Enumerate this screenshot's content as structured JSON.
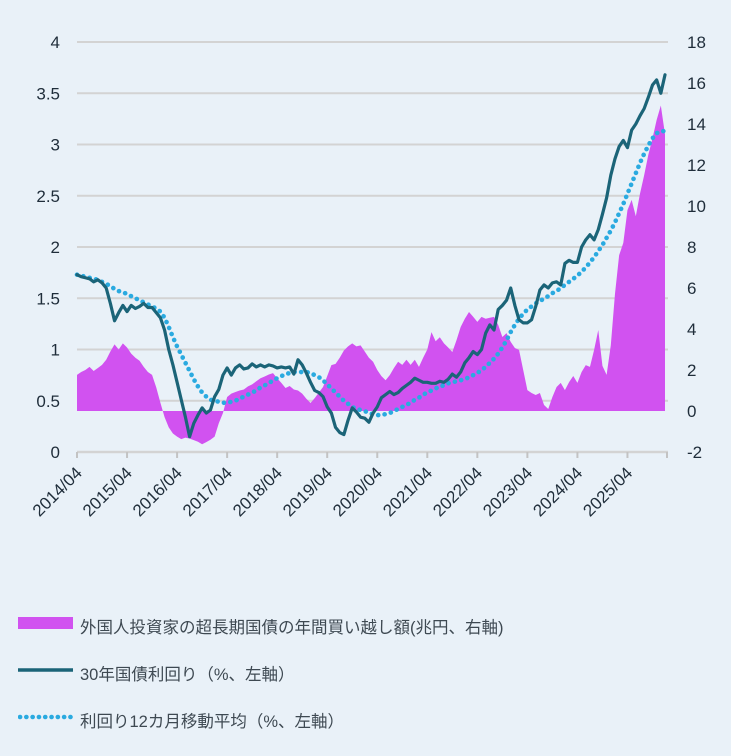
{
  "chart_data": {
    "type": "combo",
    "x_start": "2014/04",
    "x_frequency": "monthly",
    "x_tick_labels": [
      "2014/04",
      "2015/04",
      "2016/04",
      "2017/04",
      "2018/04",
      "2019/04",
      "2020/04",
      "2021/04",
      "2022/04",
      "2023/04",
      "2024/04",
      "2025/04"
    ],
    "left_axis": {
      "min": 0,
      "max": 4,
      "tick_step": 0.5,
      "ticks": [
        "4",
        "3.5",
        "3",
        "2.5",
        "2",
        "1.5",
        "1",
        "0.5",
        "0"
      ]
    },
    "right_axis": {
      "min": -2,
      "max": 18,
      "tick_step": 2,
      "ticks": [
        "18",
        "16",
        "14",
        "12",
        "10",
        "8",
        "6",
        "4",
        "2",
        "0",
        "-2"
      ]
    },
    "grid": "horizontal",
    "legend_position": "bottom-left",
    "series": [
      {
        "name": "外国人投資家の超長期国債の年間買い越し額(兆円、右軸)",
        "type": "area",
        "axis": "right",
        "color": "#d152f0",
        "values": [
          1.76,
          1.9,
          2.0,
          2.15,
          1.95,
          2.1,
          2.25,
          2.5,
          2.9,
          3.25,
          3.0,
          3.3,
          3.1,
          2.8,
          2.6,
          2.45,
          2.15,
          1.9,
          1.76,
          1.15,
          0.4,
          -0.3,
          -0.8,
          -1.1,
          -1.25,
          -1.37,
          -1.3,
          -1.35,
          -1.42,
          -1.5,
          -1.62,
          -1.52,
          -1.4,
          -1.25,
          -0.6,
          -0.1,
          0.68,
          0.85,
          0.93,
          1.0,
          1.05,
          1.2,
          1.3,
          1.45,
          1.6,
          1.68,
          1.78,
          1.85,
          1.6,
          1.37,
          1.12,
          1.22,
          1.05,
          1.0,
          0.85,
          0.6,
          0.39,
          0.63,
          0.9,
          1.17,
          1.7,
          2.24,
          2.3,
          2.6,
          2.95,
          3.15,
          3.3,
          3.15,
          3.2,
          2.9,
          2.6,
          2.4,
          2.0,
          1.7,
          1.5,
          1.75,
          2.1,
          2.4,
          2.25,
          2.5,
          2.25,
          2.5,
          2.15,
          2.6,
          3.0,
          3.85,
          3.4,
          3.6,
          3.3,
          3.1,
          2.88,
          3.45,
          4.1,
          4.5,
          4.83,
          4.6,
          4.35,
          4.59,
          4.5,
          4.55,
          4.59,
          4.2,
          3.61,
          3.8,
          3.37,
          3.07,
          2.98,
          2.0,
          1.02,
          0.88,
          0.78,
          0.88,
          0.29,
          0.1,
          0.68,
          1.17,
          1.37,
          1.02,
          1.41,
          1.71,
          1.37,
          1.9,
          2.24,
          2.15,
          2.98,
          3.95,
          2.2,
          1.76,
          3.2,
          5.7,
          7.6,
          8.2,
          9.8,
          10.3,
          9.5,
          10.6,
          11.5,
          12.5,
          13.3,
          14.2,
          14.9,
          13.5
        ]
      },
      {
        "name": "30年国債利回り（%、左軸）",
        "type": "line",
        "axis": "left",
        "color": "#1b6478",
        "values": [
          1.73,
          1.71,
          1.7,
          1.69,
          1.66,
          1.68,
          1.65,
          1.6,
          1.45,
          1.28,
          1.36,
          1.43,
          1.37,
          1.43,
          1.4,
          1.42,
          1.45,
          1.41,
          1.41,
          1.36,
          1.31,
          1.19,
          1.0,
          0.85,
          0.68,
          0.51,
          0.34,
          0.15,
          0.28,
          0.36,
          0.43,
          0.38,
          0.41,
          0.54,
          0.61,
          0.75,
          0.82,
          0.75,
          0.82,
          0.85,
          0.81,
          0.82,
          0.86,
          0.83,
          0.85,
          0.83,
          0.85,
          0.84,
          0.82,
          0.83,
          0.82,
          0.83,
          0.76,
          0.9,
          0.85,
          0.77,
          0.68,
          0.6,
          0.58,
          0.54,
          0.44,
          0.38,
          0.24,
          0.19,
          0.17,
          0.31,
          0.43,
          0.39,
          0.34,
          0.33,
          0.29,
          0.38,
          0.44,
          0.53,
          0.56,
          0.59,
          0.56,
          0.58,
          0.62,
          0.65,
          0.68,
          0.72,
          0.7,
          0.68,
          0.68,
          0.67,
          0.67,
          0.69,
          0.68,
          0.71,
          0.76,
          0.73,
          0.78,
          0.87,
          0.92,
          0.98,
          0.95,
          1.0,
          1.16,
          1.24,
          1.19,
          1.39,
          1.43,
          1.48,
          1.6,
          1.43,
          1.29,
          1.26,
          1.26,
          1.29,
          1.42,
          1.58,
          1.63,
          1.6,
          1.65,
          1.66,
          1.63,
          1.84,
          1.87,
          1.85,
          1.85,
          2.0,
          2.07,
          2.12,
          2.07,
          2.17,
          2.32,
          2.48,
          2.7,
          2.86,
          2.98,
          3.04,
          2.97,
          3.14,
          3.2,
          3.28,
          3.35,
          3.46,
          3.58,
          3.63,
          3.5,
          3.68
        ]
      },
      {
        "name": "利回り12カ月移動平均（%、左軸）",
        "type": "dotted-line",
        "axis": "left",
        "color": "#2aaae0",
        "values": [
          1.73,
          1.72,
          1.71,
          1.7,
          1.69,
          1.68,
          1.66,
          1.64,
          1.62,
          1.59,
          1.57,
          1.56,
          1.54,
          1.52,
          1.5,
          1.48,
          1.46,
          1.44,
          1.42,
          1.4,
          1.37,
          1.31,
          1.22,
          1.12,
          1.03,
          0.95,
          0.87,
          0.79,
          0.71,
          0.64,
          0.58,
          0.54,
          0.51,
          0.5,
          0.49,
          0.48,
          0.48,
          0.49,
          0.5,
          0.52,
          0.54,
          0.56,
          0.58,
          0.6,
          0.63,
          0.65,
          0.67,
          0.7,
          0.72,
          0.74,
          0.76,
          0.77,
          0.78,
          0.78,
          0.78,
          0.78,
          0.77,
          0.75,
          0.73,
          0.7,
          0.66,
          0.62,
          0.58,
          0.54,
          0.5,
          0.47,
          0.44,
          0.42,
          0.41,
          0.4,
          0.38,
          0.37,
          0.36,
          0.36,
          0.37,
          0.38,
          0.4,
          0.42,
          0.44,
          0.46,
          0.48,
          0.51,
          0.53,
          0.56,
          0.58,
          0.6,
          0.62,
          0.64,
          0.65,
          0.67,
          0.68,
          0.69,
          0.7,
          0.71,
          0.73,
          0.75,
          0.77,
          0.8,
          0.83,
          0.87,
          0.91,
          0.96,
          1.02,
          1.09,
          1.17,
          1.24,
          1.3,
          1.35,
          1.39,
          1.42,
          1.45,
          1.47,
          1.5,
          1.52,
          1.55,
          1.57,
          1.6,
          1.63,
          1.66,
          1.69,
          1.72,
          1.76,
          1.8,
          1.85,
          1.9,
          1.96,
          2.02,
          2.09,
          2.16,
          2.24,
          2.33,
          2.42,
          2.52,
          2.62,
          2.72,
          2.82,
          2.91,
          2.99,
          3.06,
          3.11,
          3.13,
          3.13
        ]
      }
    ]
  },
  "legend": {
    "items": [
      {
        "label": "外国人投資家の超長期国債の年間買い越し額(兆円、右軸)",
        "swatch": "area"
      },
      {
        "label": "30年国債利回り（%、左軸）",
        "swatch": "line"
      },
      {
        "label": "利回り12カ月移動平均（%、左軸）",
        "swatch": "dotted"
      }
    ]
  },
  "colors": {
    "background": "#e9f1f8",
    "gridline": "#d3d3d3",
    "axis_text": "#1f2d3a",
    "legend_text": "#3e4952",
    "area": "#d152f0",
    "line": "#1b6478",
    "dotted": "#2aaae0"
  }
}
